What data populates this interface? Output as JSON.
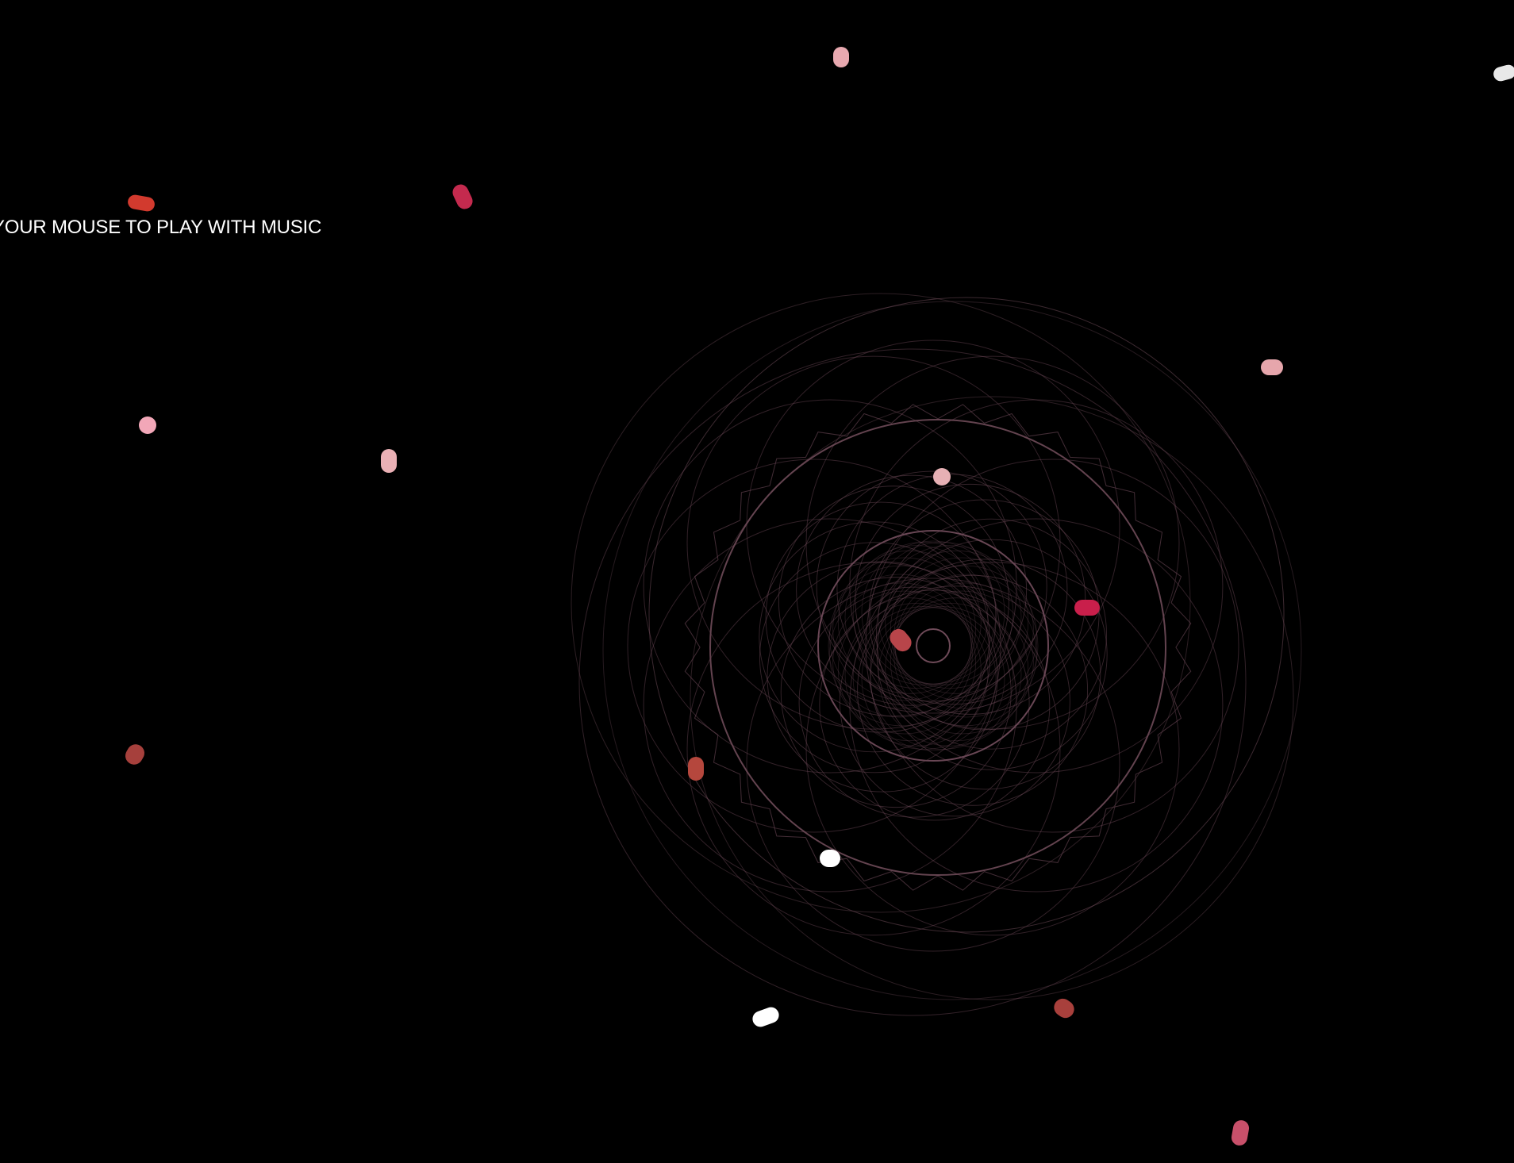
{
  "app": {
    "instruction": "YOUR MOUSE TO PLAY WITH MUSIC"
  },
  "visualizer": {
    "line_color": "#6e4a58",
    "background_color": "#000000"
  },
  "particles": [
    {
      "color": "#e8a9b0"
    },
    {
      "color": "#e8e8e8"
    },
    {
      "color": "#d23a2e"
    },
    {
      "color": "#c42a4e"
    },
    {
      "color": "#e6a6ac"
    },
    {
      "color": "#f2a7b8"
    },
    {
      "color": "#eab0b5"
    },
    {
      "color": "#e6b0b4"
    },
    {
      "color": "#c91f4b"
    },
    {
      "color": "#b8454a"
    },
    {
      "color": "#a6403c"
    },
    {
      "color": "#b5473d"
    },
    {
      "color": "#ffffff"
    },
    {
      "color": "#ffffff"
    },
    {
      "color": "#a8403c"
    },
    {
      "color": "#c8506a"
    }
  ]
}
